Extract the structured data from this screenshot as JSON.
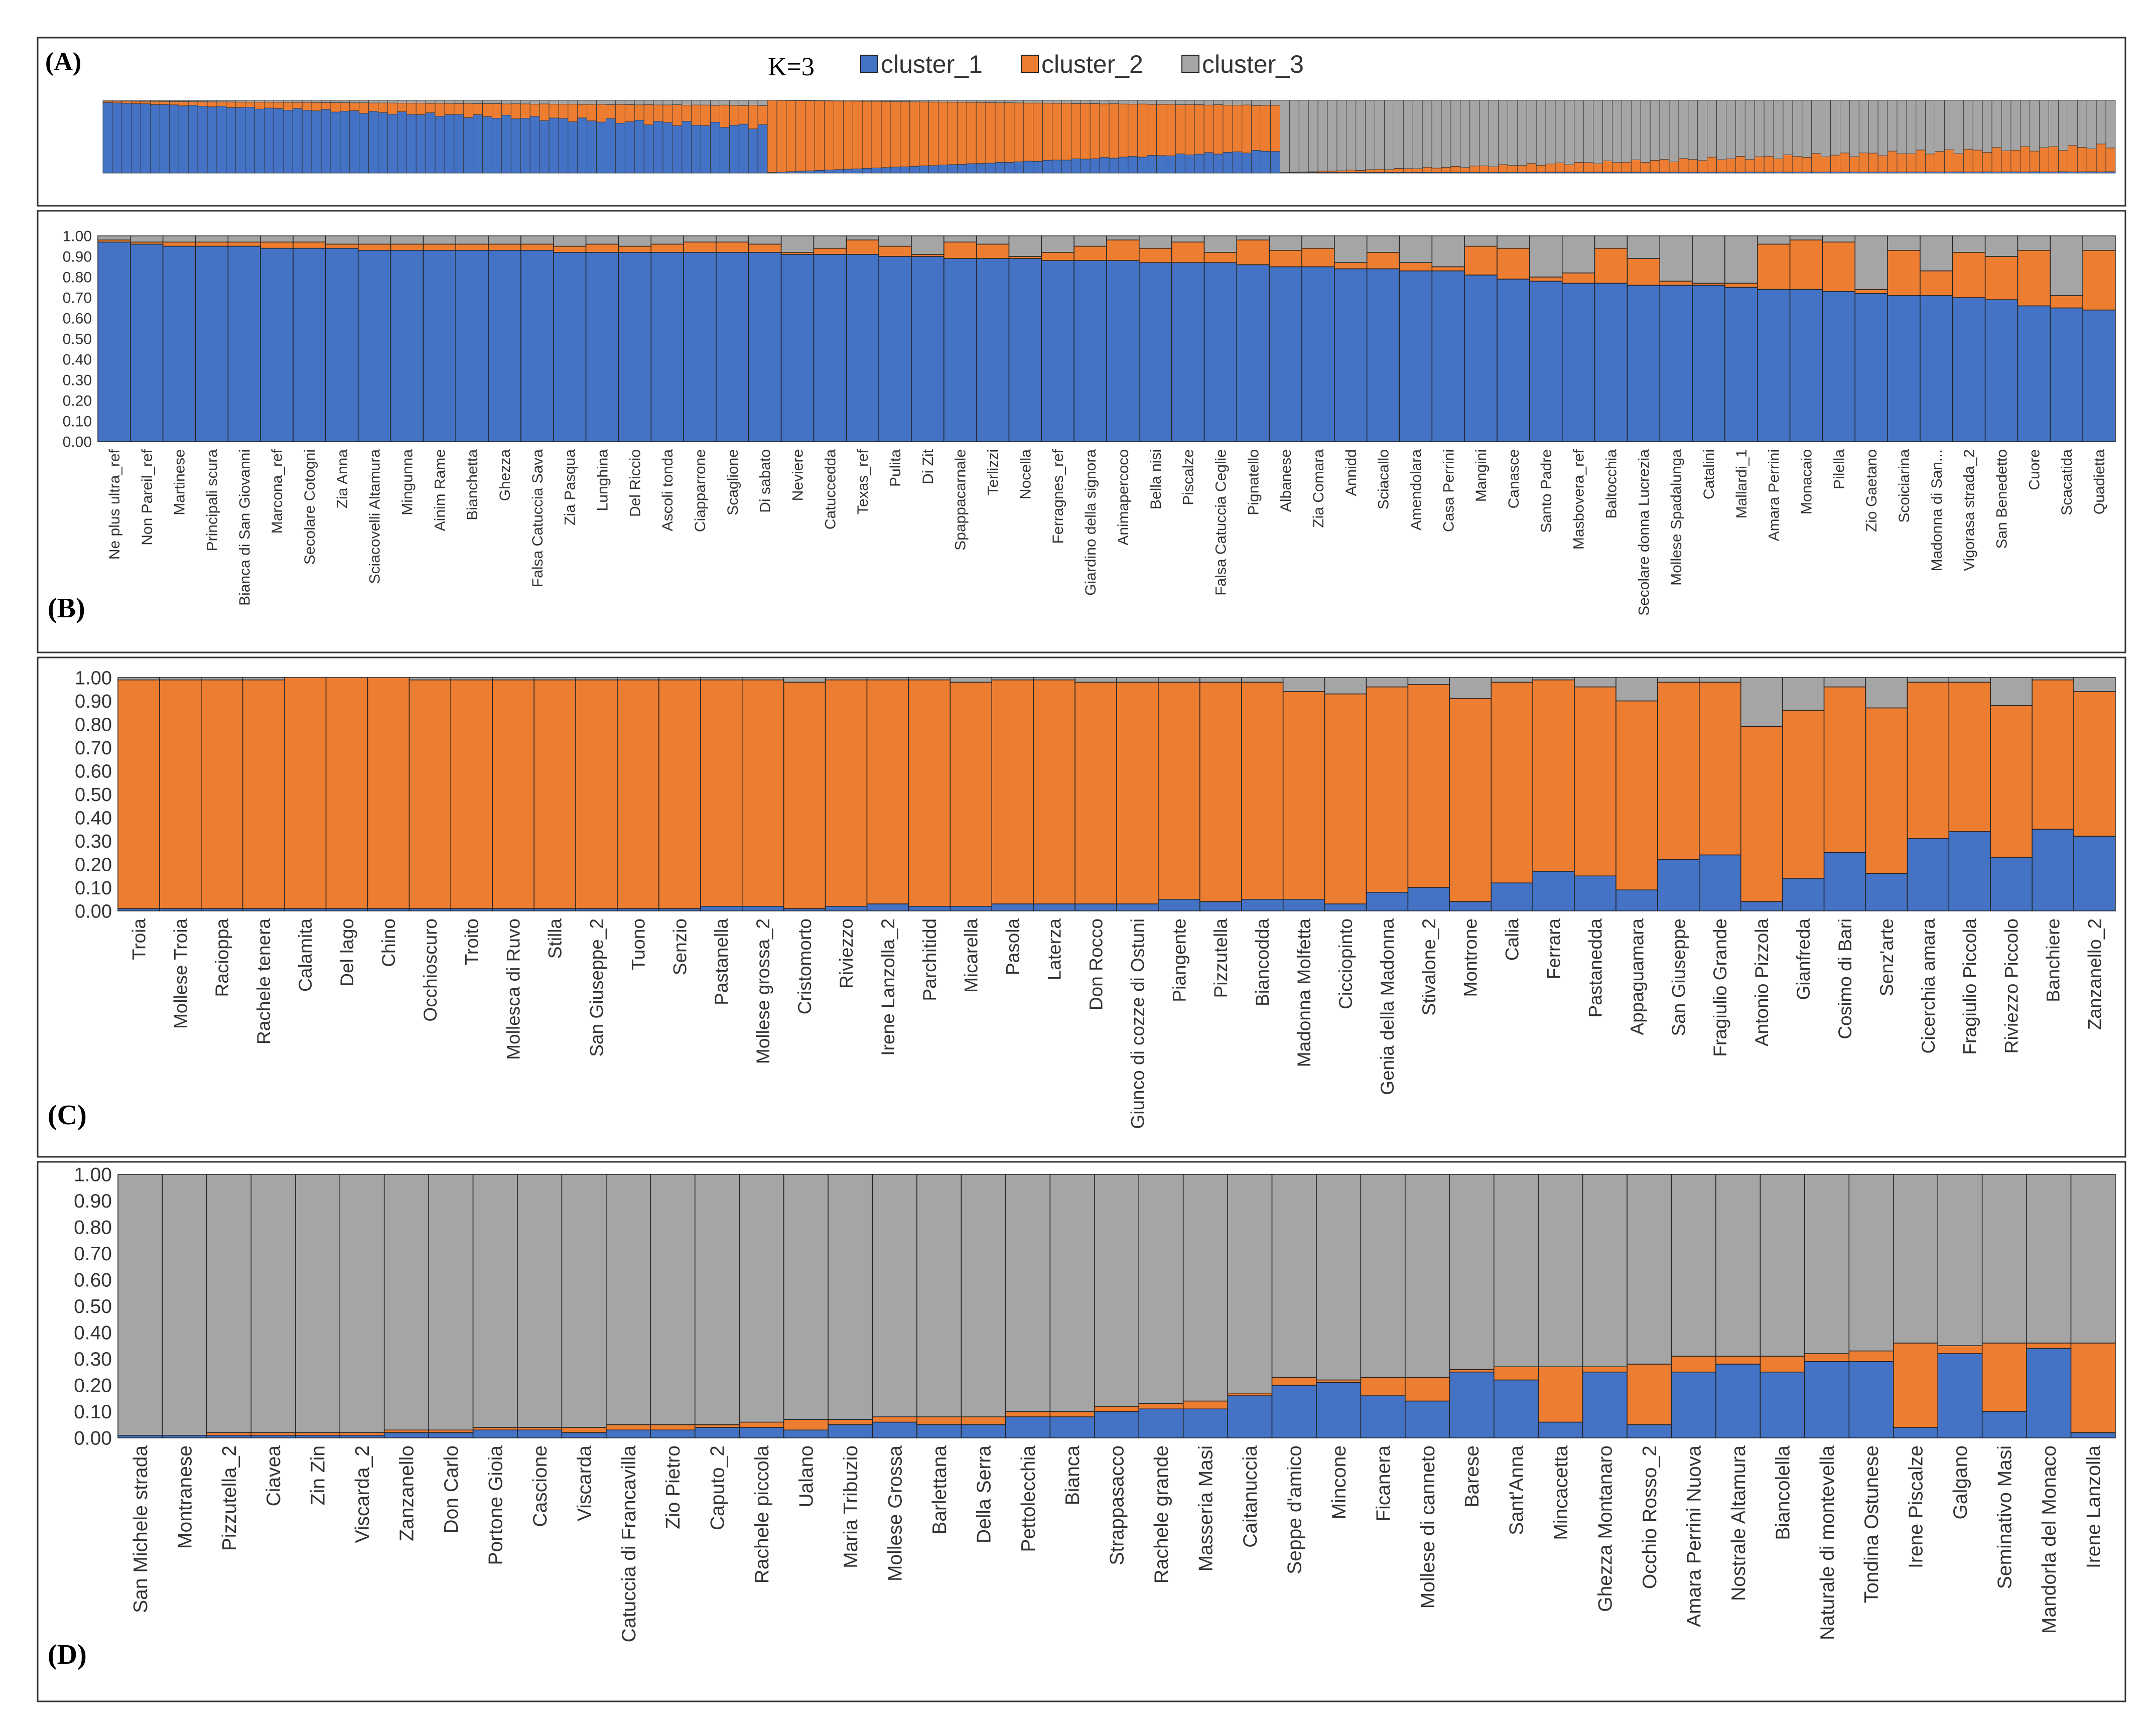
{
  "figure": {
    "k_label": "K=3",
    "cluster_colors": {
      "cluster_1": "#4472C4",
      "cluster_2": "#ED7D31",
      "cluster_3": "#A5A5A5"
    }
  },
  "chart_data": [
    {
      "panel": "(A)",
      "type": "bar",
      "stacked": true,
      "description_note": "",
      "legend": {
        "position": "top",
        "entries": [
          "cluster_1",
          "cluster_2",
          "cluster_3"
        ]
      },
      "series_order": [
        "cluster_1",
        "cluster_2",
        "cluster_3"
      ],
      "segments": [
        {
          "series": "cluster_1",
          "from": 1,
          "to": 70,
          "start": [
            0.97,
            0.02,
            0.01
          ],
          "end": [
            0.64,
            0.29,
            0.07
          ]
        },
        {
          "series": "cluster_2",
          "from": 71,
          "to": 124,
          "start": [
            0.01,
            0.99,
            0.0
          ],
          "end": [
            0.31,
            0.62,
            0.07
          ]
        },
        {
          "series": "cluster_3",
          "from": 125,
          "to": 212,
          "start": [
            0.01,
            0.0,
            0.99
          ],
          "end": [
            0.02,
            0.35,
            0.63
          ]
        }
      ],
      "n_samples": 212,
      "ylim": [
        0,
        1
      ]
    },
    {
      "panel": "(B)",
      "type": "bar",
      "stacked": true,
      "yticks": [
        "0.00",
        "0.10",
        "0.20",
        "0.30",
        "0.40",
        "0.50",
        "0.60",
        "0.70",
        "0.80",
        "0.90",
        "1.00"
      ],
      "ylim": [
        0,
        1
      ],
      "series_order": [
        "cluster_1",
        "cluster_2",
        "cluster_3"
      ],
      "categories": [
        "Ne plus ultra_ref",
        "Non Pareil_ref",
        "Martinese",
        "Principali scura",
        "Bianca di San Giovanni",
        "Marcona_ref",
        "Secolare Cotogni",
        "Zia Anna",
        "Sciacovelli Altamura",
        "Mingunna",
        "Ainim Rame",
        "Bianchetta",
        "Ghezza",
        "Falsa Catuccia Sava",
        "Zia Pasqua",
        "Lunghina",
        "Del Riccio",
        "Ascoli tonda",
        "Ciapparrone",
        "Scaglione",
        "Di sabato",
        "Neviere",
        "Catuccedda",
        "Texas_ref",
        "Pulita",
        "Di Zit",
        "Spappacarnale",
        "Terlizzi",
        "Nocella",
        "Ferragnes_ref",
        "Giardino della signora",
        "Animapercoco",
        "Bella nisi",
        "Piscalze",
        "Falsa Catuccia Ceglie",
        "Pignatello",
        "Albanese",
        "Zia Comara",
        "Annidd",
        "Sciacallo",
        "Amendolara",
        "Casa Perrini",
        "Mangini",
        "Canasce",
        "Santo Padre",
        "Masbovera_ref",
        "Baltocchia",
        "Secolare donna Lucrezia",
        "Mollese Spadalunga",
        "Catalini",
        "Mallardi_1",
        "Amara Perrini",
        "Monacaio",
        "Pilella",
        "Zio Gaetano",
        "Scoiciarina",
        "Madonna di San...",
        "Vigorasa strada_2",
        "San Benedetto",
        "Cuore",
        "Scacatida",
        "Quadietta"
      ],
      "cluster_1": [
        0.97,
        0.96,
        0.95,
        0.95,
        0.95,
        0.94,
        0.94,
        0.94,
        0.93,
        0.93,
        0.93,
        0.93,
        0.93,
        0.93,
        0.92,
        0.92,
        0.92,
        0.92,
        0.92,
        0.92,
        0.92,
        0.91,
        0.91,
        0.91,
        0.9,
        0.9,
        0.89,
        0.89,
        0.89,
        0.88,
        0.88,
        0.88,
        0.87,
        0.87,
        0.87,
        0.86,
        0.85,
        0.85,
        0.84,
        0.84,
        0.83,
        0.83,
        0.81,
        0.79,
        0.78,
        0.77,
        0.77,
        0.76,
        0.76,
        0.76,
        0.75,
        0.74,
        0.74,
        0.73,
        0.72,
        0.71,
        0.71,
        0.7,
        0.69,
        0.66,
        0.65,
        0.64
      ],
      "cluster_2": [
        0.01,
        0.01,
        0.02,
        0.02,
        0.02,
        0.03,
        0.03,
        0.02,
        0.03,
        0.03,
        0.03,
        0.03,
        0.03,
        0.03,
        0.03,
        0.04,
        0.03,
        0.04,
        0.05,
        0.05,
        0.04,
        0.01,
        0.03,
        0.07,
        0.05,
        0.01,
        0.08,
        0.07,
        0.01,
        0.04,
        0.07,
        0.1,
        0.07,
        0.1,
        0.05,
        0.12,
        0.08,
        0.09,
        0.03,
        0.08,
        0.04,
        0.02,
        0.14,
        0.15,
        0.02,
        0.05,
        0.17,
        0.13,
        0.02,
        0.01,
        0.02,
        0.22,
        0.24,
        0.24,
        0.02,
        0.22,
        0.12,
        0.22,
        0.21,
        0.27,
        0.06,
        0.29
      ],
      "cluster_3": [
        0.02,
        0.03,
        0.03,
        0.03,
        0.03,
        0.03,
        0.03,
        0.04,
        0.04,
        0.04,
        0.04,
        0.04,
        0.04,
        0.04,
        0.05,
        0.04,
        0.05,
        0.04,
        0.03,
        0.03,
        0.04,
        0.08,
        0.06,
        0.02,
        0.05,
        0.09,
        0.03,
        0.04,
        0.1,
        0.08,
        0.05,
        0.02,
        0.06,
        0.03,
        0.08,
        0.02,
        0.07,
        0.06,
        0.13,
        0.08,
        0.13,
        0.15,
        0.05,
        0.06,
        0.2,
        0.18,
        0.06,
        0.11,
        0.22,
        0.23,
        0.23,
        0.04,
        0.02,
        0.03,
        0.26,
        0.07,
        0.17,
        0.08,
        0.1,
        0.07,
        0.29,
        0.07
      ]
    },
    {
      "panel": "(C)",
      "type": "bar",
      "stacked": true,
      "yticks": [
        "0.00",
        "0.10",
        "0.20",
        "0.30",
        "0.40",
        "0.50",
        "0.60",
        "0.70",
        "0.80",
        "0.90",
        "1.00"
      ],
      "ylim": [
        0,
        1
      ],
      "series_order": [
        "cluster_1",
        "cluster_2",
        "cluster_3"
      ],
      "categories": [
        "Troia",
        "Mollese Troia",
        "Racioppa",
        "Rachele tenera",
        "Calamita",
        "Del lago",
        "Chino",
        "Occhioscuro",
        "Troito",
        "Mollesca di Ruvo",
        "Stilla",
        "San Giuseppe_2",
        "Tuono",
        "Senzio",
        "Pastanella",
        "Mollese grossa_2",
        "Cristomorto",
        "Riviezzo",
        "Irene Lanzolla_2",
        "Parchitidd",
        "Micarella",
        "Pasola",
        "Laterza",
        "Don Rocco",
        "Giunco di cozze di Ostuni",
        "Piangente",
        "Pizzutella",
        "Biancodda",
        "Madonna Molfetta",
        "Cicciopinto",
        "Genia della Madonna",
        "Stivalone_2",
        "Montrone",
        "Calia",
        "Ferrara",
        "Pastanedda",
        "Appaguamara",
        "San Giuseppe",
        "Fragiulio Grande",
        "Antonio Pizzola",
        "Gianfreda",
        "Cosimo di Bari",
        "Senz'arte",
        "Cicerchia amara",
        "Fragiulio Piccola",
        "Riviezzo Piccolo",
        "Banchiere",
        "Zanzanello_2"
      ],
      "cluster_1": [
        0.01,
        0.01,
        0.01,
        0.01,
        0.01,
        0.01,
        0.01,
        0.01,
        0.01,
        0.01,
        0.01,
        0.01,
        0.01,
        0.01,
        0.02,
        0.02,
        0.01,
        0.02,
        0.03,
        0.02,
        0.02,
        0.03,
        0.03,
        0.03,
        0.03,
        0.05,
        0.04,
        0.05,
        0.05,
        0.03,
        0.08,
        0.1,
        0.04,
        0.12,
        0.17,
        0.15,
        0.09,
        0.22,
        0.24,
        0.04,
        0.14,
        0.25,
        0.16,
        0.31,
        0.34,
        0.23,
        0.35,
        0.32
      ],
      "cluster_2": [
        0.98,
        0.98,
        0.98,
        0.98,
        0.99,
        0.99,
        0.99,
        0.98,
        0.98,
        0.98,
        0.98,
        0.98,
        0.98,
        0.98,
        0.97,
        0.97,
        0.97,
        0.97,
        0.96,
        0.97,
        0.96,
        0.96,
        0.96,
        0.95,
        0.95,
        0.93,
        0.94,
        0.93,
        0.89,
        0.9,
        0.88,
        0.87,
        0.87,
        0.86,
        0.82,
        0.81,
        0.81,
        0.76,
        0.74,
        0.75,
        0.72,
        0.71,
        0.71,
        0.67,
        0.64,
        0.65,
        0.64,
        0.62
      ],
      "cluster_3": [
        0.01,
        0.01,
        0.01,
        0.01,
        0.0,
        0.0,
        0.0,
        0.01,
        0.01,
        0.01,
        0.01,
        0.01,
        0.01,
        0.01,
        0.01,
        0.01,
        0.02,
        0.01,
        0.01,
        0.01,
        0.02,
        0.01,
        0.01,
        0.02,
        0.02,
        0.02,
        0.02,
        0.02,
        0.06,
        0.07,
        0.04,
        0.03,
        0.09,
        0.02,
        0.01,
        0.04,
        0.1,
        0.02,
        0.02,
        0.21,
        0.14,
        0.04,
        0.13,
        0.02,
        0.02,
        0.12,
        0.01,
        0.06
      ]
    },
    {
      "panel": "(D)",
      "type": "bar",
      "stacked": true,
      "yticks": [
        "0.00",
        "0.10",
        "0.20",
        "0.30",
        "0.40",
        "0.50",
        "0.60",
        "0.70",
        "0.80",
        "0.90",
        "1.00"
      ],
      "ylim": [
        0,
        1
      ],
      "series_order": [
        "cluster_1",
        "cluster_2",
        "cluster_3"
      ],
      "categories": [
        "San Michele strada",
        "Montranese",
        "Pizzutella_2",
        "Ciavea",
        "Zin Zin",
        "Viscarda_2",
        "Zanzanello",
        "Don Carlo",
        "Portone Gioia",
        "Cascione",
        "Viscarda",
        "Catuccia di Francavilla",
        "Zio Pietro",
        "Caputo_2",
        "Rachele piccola",
        "Ualano",
        "Maria Tribuzio",
        "Mollese Grossa",
        "Barlettana",
        "Della Serra",
        "Pettolecchia",
        "Bianca",
        "Strappasacco",
        "Rachele grande",
        "Masseria Masi",
        "Caitanuccia",
        "Seppe d'amico",
        "Mincone",
        "Ficanera",
        "Mollese di canneto",
        "Barese",
        "Sant'Anna",
        "Mincacetta",
        "Ghezza Montanaro",
        "Occhio Rosso_2",
        "Amara Perrini Nuova",
        "Nostrale Altamura",
        "Biancolella",
        "Naturale di montevella",
        "Tondina Ostunese",
        "Irene Piscalze",
        "Galgano",
        "Seminativo Masi",
        "Mandorla del Monaco",
        "Irene Lanzolla"
      ],
      "cluster_1": [
        0.01,
        0.01,
        0.01,
        0.01,
        0.01,
        0.01,
        0.02,
        0.02,
        0.03,
        0.03,
        0.02,
        0.03,
        0.03,
        0.04,
        0.04,
        0.03,
        0.05,
        0.06,
        0.05,
        0.05,
        0.08,
        0.08,
        0.1,
        0.11,
        0.11,
        0.16,
        0.2,
        0.21,
        0.16,
        0.14,
        0.25,
        0.22,
        0.06,
        0.25,
        0.05,
        0.25,
        0.28,
        0.25,
        0.29,
        0.29,
        0.04,
        0.32,
        0.1,
        0.34,
        0.02
      ],
      "cluster_2": [
        0.0,
        0.0,
        0.01,
        0.01,
        0.01,
        0.01,
        0.01,
        0.01,
        0.01,
        0.01,
        0.02,
        0.02,
        0.02,
        0.01,
        0.02,
        0.04,
        0.02,
        0.02,
        0.03,
        0.03,
        0.02,
        0.02,
        0.02,
        0.02,
        0.03,
        0.01,
        0.03,
        0.01,
        0.07,
        0.09,
        0.01,
        0.05,
        0.21,
        0.02,
        0.23,
        0.06,
        0.03,
        0.06,
        0.03,
        0.04,
        0.32,
        0.03,
        0.26,
        0.02,
        0.34
      ],
      "cluster_3": [
        0.99,
        0.99,
        0.98,
        0.98,
        0.98,
        0.98,
        0.97,
        0.97,
        0.96,
        0.96,
        0.96,
        0.95,
        0.95,
        0.95,
        0.94,
        0.93,
        0.93,
        0.92,
        0.92,
        0.92,
        0.9,
        0.9,
        0.88,
        0.87,
        0.86,
        0.83,
        0.77,
        0.78,
        0.77,
        0.77,
        0.74,
        0.73,
        0.73,
        0.73,
        0.72,
        0.69,
        0.69,
        0.69,
        0.68,
        0.67,
        0.64,
        0.65,
        0.64,
        0.64,
        0.64
      ]
    }
  ]
}
